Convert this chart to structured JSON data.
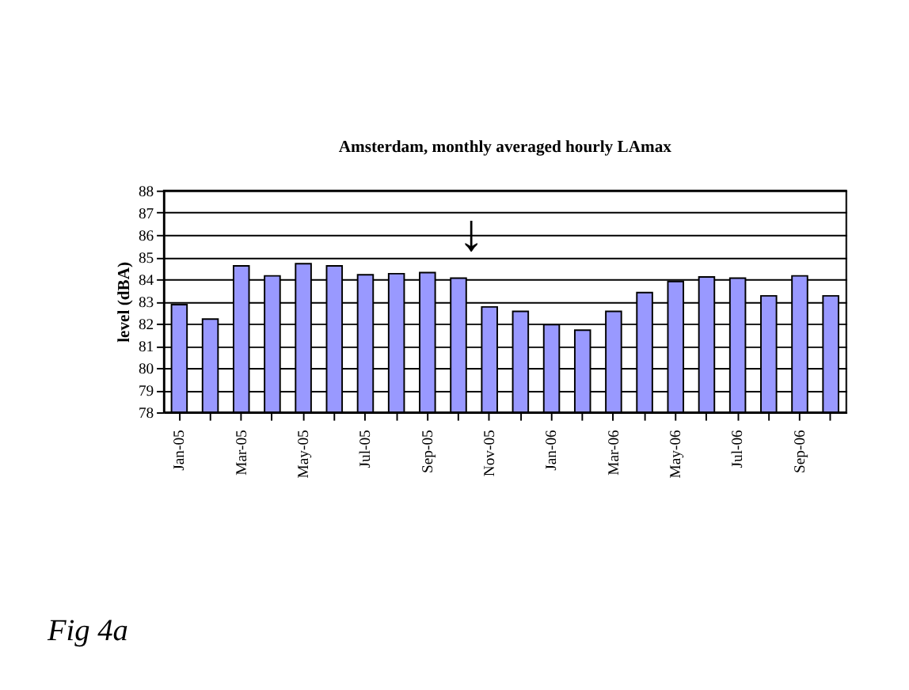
{
  "chart_data": {
    "type": "bar",
    "title": "Amsterdam, monthly averaged hourly LAmax",
    "ylabel": "level (dBA)",
    "categories": [
      "Jan-05",
      null,
      "Mar-05",
      null,
      "May-05",
      null,
      "Jul-05",
      null,
      "Sep-05",
      null,
      "Nov-05",
      null,
      "Jan-06",
      null,
      "Mar-06",
      null,
      "May-06",
      null,
      "Jul-06",
      null,
      "Sep-06",
      null
    ],
    "values": [
      82.85,
      82.2,
      84.6,
      84.15,
      84.7,
      84.6,
      84.2,
      84.25,
      84.3,
      84.05,
      82.75,
      82.55,
      81.95,
      81.7,
      82.55,
      83.4,
      83.9,
      84.1,
      84.05,
      83.25,
      84.15,
      83.25
    ],
    "color": "#9999ff",
    "ylim": [
      78,
      88
    ],
    "yticks": [
      78,
      79,
      80,
      81,
      82,
      83,
      84,
      85,
      86,
      87,
      88
    ],
    "grid": "y",
    "annotations": [
      "↓",
      "Fig 4a"
    ]
  }
}
